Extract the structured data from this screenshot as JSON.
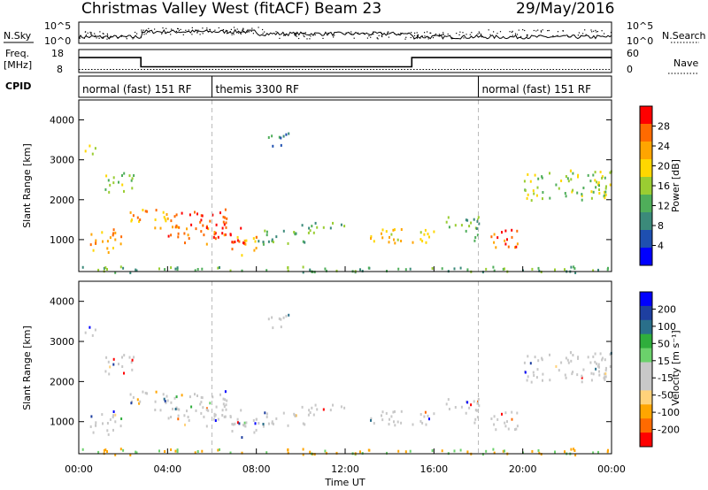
{
  "header": {
    "radar_title": "Christmas Valley West (fitACF)",
    "beam": "Beam 23",
    "date": "29/May/2016"
  },
  "strip_labels": {
    "nsky": "N.Sky",
    "nsearch": "N.Search",
    "freq_line1": "Freq.",
    "freq_line2": "[MHz]",
    "nave": "Nave",
    "cpid": "CPID"
  },
  "colors": {
    "power_scale": [
      "#0000ff",
      "#1e4fb0",
      "#3b8a7a",
      "#4fae5a",
      "#9acd32",
      "#ffd700",
      "#ffa500",
      "#ff6a00",
      "#ff0000"
    ],
    "velocity_scale": [
      "#ff0000",
      "#ff6a00",
      "#ffa500",
      "#ffd27a",
      "#c8c8c8",
      "#c8c8c8",
      "#6bd16b",
      "#2fae3c",
      "#2a6f8a",
      "#1e3fa0",
      "#0000ff"
    ],
    "ground_scatter": "#bebebe"
  },
  "chart_data": [
    {
      "type": "line",
      "name": "noise-sky-search",
      "ylabels_left": [
        "10^5",
        "10^0"
      ],
      "ylabels_right": [
        "10^5",
        "10^0"
      ]
    },
    {
      "type": "line",
      "name": "frequency-nave",
      "ylim_left": [
        8,
        18
      ],
      "ylim_right": [
        0,
        60
      ],
      "ticks_left": [
        "18",
        "8"
      ],
      "ticks_right": [
        "60",
        "0"
      ],
      "freq_steps": [
        [
          0,
          14.5
        ],
        [
          2.8,
          10.5
        ],
        [
          15.0,
          14.5
        ],
        [
          24,
          14.5
        ]
      ],
      "nave_level": 8
    },
    {
      "type": "table",
      "name": "cpid",
      "modes": [
        {
          "label": "normal (fast) 151 RF",
          "start": 0.0,
          "end": 6.0
        },
        {
          "label": "themis 3300 RF",
          "start": 6.0,
          "end": 18.0
        },
        {
          "label": "normal (fast) 151 RF",
          "start": 18.0,
          "end": 24.0
        }
      ]
    },
    {
      "type": "heatmap",
      "name": "power",
      "ylabel": "Slant Range [km]",
      "yticks": [
        1000,
        2000,
        3000,
        4000
      ],
      "ylim": [
        200,
        4500
      ],
      "colorbar_label": "Power [dB]",
      "colorbar_ticks": [
        "28",
        "24",
        "20",
        "16",
        "12",
        "8",
        "4"
      ],
      "echo_regions": [
        {
          "t0": 0.5,
          "t1": 2.0,
          "r0": 700,
          "r1": 1300,
          "level": 6
        },
        {
          "t0": 1.0,
          "t1": 2.5,
          "r0": 2200,
          "r1": 2700,
          "level": 4
        },
        {
          "t0": 0.2,
          "t1": 0.8,
          "r0": 3100,
          "r1": 3400,
          "level": 5
        },
        {
          "t0": 2.2,
          "t1": 4.5,
          "r0": 1300,
          "r1": 1800,
          "level": 6
        },
        {
          "t0": 4.0,
          "t1": 7.5,
          "r0": 900,
          "r1": 1400,
          "level": 7
        },
        {
          "t0": 4.5,
          "t1": 6.8,
          "r0": 1400,
          "r1": 1800,
          "level": 8
        },
        {
          "t0": 6.8,
          "t1": 8.0,
          "r0": 600,
          "r1": 1100,
          "level": 6
        },
        {
          "t0": 8.0,
          "t1": 10.5,
          "r0": 900,
          "r1": 1300,
          "level": 3
        },
        {
          "t0": 10.0,
          "t1": 12.0,
          "r0": 1200,
          "r1": 1450,
          "level": 3
        },
        {
          "t0": 13.0,
          "t1": 16.0,
          "r0": 900,
          "r1": 1300,
          "level": 5
        },
        {
          "t0": 16.5,
          "t1": 18.0,
          "r0": 1000,
          "r1": 1600,
          "level": 3
        },
        {
          "t0": 18.5,
          "t1": 20.0,
          "r0": 800,
          "r1": 1300,
          "level": 7
        },
        {
          "t0": 20.0,
          "t1": 24.0,
          "r0": 2000,
          "r1": 2800,
          "level": 4
        },
        {
          "t0": 8.5,
          "t1": 9.5,
          "r0": 3300,
          "r1": 3700,
          "level": 2
        },
        {
          "t0": 0.0,
          "t1": 24.0,
          "r0": 200,
          "r1": 350,
          "level": 3
        }
      ]
    },
    {
      "type": "heatmap",
      "name": "velocity",
      "xlabel": "Time UT",
      "ylabel": "Slant Range [km]",
      "yticks": [
        1000,
        2000,
        3000,
        4000
      ],
      "ylim": [
        200,
        4500
      ],
      "xticks": [
        "00:00",
        "04:00",
        "08:00",
        "12:00",
        "16:00",
        "20:00",
        "00:00"
      ],
      "xlim_hours": [
        0,
        24
      ],
      "colorbar_label": "Velocity [m s⁻¹]",
      "colorbar_ticks": [
        "200",
        "100",
        "50",
        "15",
        "-15",
        "-50",
        "-100",
        "-200"
      ],
      "mode_boundaries_hours": [
        6.0,
        18.0
      ]
    }
  ]
}
